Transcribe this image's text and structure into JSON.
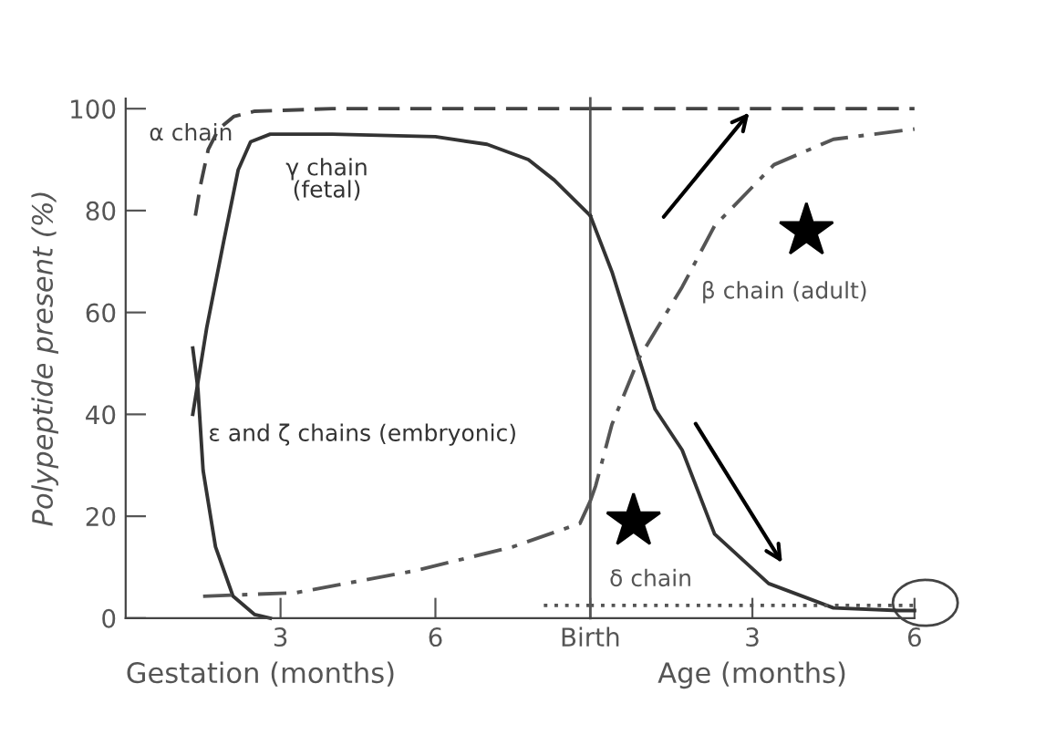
{
  "chart_data": [
    {
      "type": "line",
      "xlabel": "Gestation (months)",
      "ylabel": "Polypeptide present (%)",
      "xlim": [
        0,
        9
      ],
      "ylim": [
        0,
        102
      ],
      "xticks": [
        3,
        6,
        {
          "value": 9,
          "label": "Birth"
        }
      ],
      "yticks": [
        0,
        20,
        40,
        60,
        80,
        100
      ],
      "grid": false,
      "legend": false,
      "marker": "none",
      "ref_lines": [
        {
          "axis": "x",
          "value": 9,
          "label": null,
          "color": "#555555",
          "line_style": "solid"
        }
      ],
      "series": [
        {
          "name": "α chain",
          "color": "#444444",
          "line_style": "dashed",
          "x": [
            1.35,
            1.45,
            1.6,
            1.8,
            2.1,
            2.5,
            4,
            9
          ],
          "values": [
            79,
            85,
            92,
            96,
            98.5,
            99.5,
            100,
            100
          ]
        },
        {
          "name": "γ chain\n(fetal)",
          "color": "#333333",
          "line_style": "solid",
          "x": [
            1.3,
            1.57,
            1.9,
            2.18,
            2.42,
            2.8,
            4,
            6,
            7,
            7.8,
            8.3,
            9
          ],
          "values": [
            40,
            57,
            74,
            88,
            93.5,
            95,
            95,
            94.5,
            93,
            90,
            86,
            79
          ]
        },
        {
          "name": "ε and ζ chains (embryonic)",
          "color": "#333333",
          "line_style": "solid",
          "x": [
            1.3,
            1.4,
            1.5,
            1.74,
            2.08,
            2.5,
            2.8
          ],
          "values": [
            53,
            45,
            29,
            14,
            4.3,
            0.7,
            0
          ]
        },
        {
          "color": "#555555",
          "line_style": "dashdot",
          "x": [
            1.5,
            3.3,
            5.6,
            7.5,
            8.8,
            9
          ],
          "values": [
            4.3,
            5,
            9.3,
            14,
            18.6,
            23
          ]
        },
        {
          "color": "#555555",
          "line_style": "dotted",
          "x": [
            8.1,
            9
          ],
          "values": [
            2.5,
            2.5
          ]
        }
      ]
    },
    {
      "type": "line",
      "xlabel": "Age (months)",
      "xlim": [
        0,
        6
      ],
      "ylim": [
        0,
        102
      ],
      "xticks": [
        3,
        6
      ],
      "tick_labels": "x",
      "grid": false,
      "legend": false,
      "marker": "none",
      "series": [
        {
          "color": "#444444",
          "line_style": "dashed",
          "x": [
            0,
            6
          ],
          "values": [
            100,
            100
          ]
        },
        {
          "color": "#333333",
          "line_style": "solid",
          "x": [
            0,
            0.4,
            0.9,
            1.2,
            1.7,
            2.3,
            3.3,
            4.5,
            5.7,
            6
          ],
          "values": [
            79,
            68,
            51,
            41,
            33,
            16.5,
            6.8,
            2,
            1.5,
            1.5
          ]
        },
        {
          "name": "β chain (adult)",
          "color": "#555555",
          "line_style": "dashdot",
          "x": [
            0,
            0.1,
            0.4,
            0.9,
            1.7,
            2.3,
            3.4,
            4.5,
            6
          ],
          "values": [
            23,
            26,
            38,
            51,
            65,
            77,
            89,
            94,
            96
          ]
        },
        {
          "name": "δ chain",
          "color": "#555555",
          "line_style": "dotted",
          "x": [
            0,
            6
          ],
          "values": [
            2.5,
            2.5
          ]
        }
      ]
    }
  ]
}
